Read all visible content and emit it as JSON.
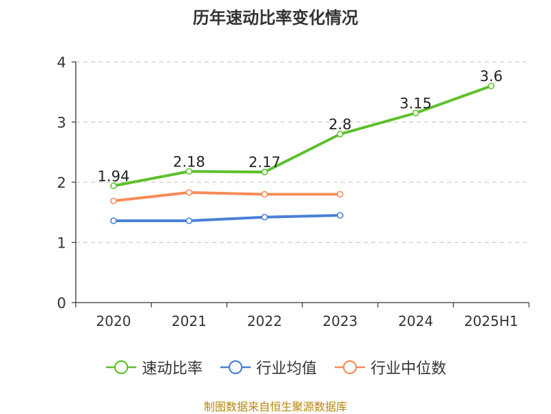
{
  "chart_data": {
    "type": "line",
    "title": "历年速动比率变化情况",
    "categories": [
      "2020",
      "2021",
      "2022",
      "2023",
      "2024",
      "2025H1"
    ],
    "ylim": [
      0,
      4
    ],
    "yticks": [
      "0",
      "1",
      "2",
      "3",
      "4"
    ],
    "grid": true,
    "legend_position": "bottom",
    "series": [
      {
        "name": "速动比率",
        "color": "#5cc02a",
        "values": [
          1.94,
          2.18,
          2.17,
          2.8,
          3.15,
          3.6
        ],
        "labels": [
          "1.94",
          "2.18",
          "2.17",
          "2.8",
          "3.15",
          "3.6"
        ]
      },
      {
        "name": "行业均值",
        "color": "#4a7fd6",
        "values": [
          1.36,
          1.36,
          1.42,
          1.45,
          null,
          null
        ]
      },
      {
        "name": "行业中位数",
        "color": "#f58c58",
        "values": [
          1.69,
          1.83,
          1.8,
          1.8,
          null,
          null
        ]
      }
    ]
  },
  "footer": {
    "source": "制图数据来自恒生聚源数据库"
  }
}
